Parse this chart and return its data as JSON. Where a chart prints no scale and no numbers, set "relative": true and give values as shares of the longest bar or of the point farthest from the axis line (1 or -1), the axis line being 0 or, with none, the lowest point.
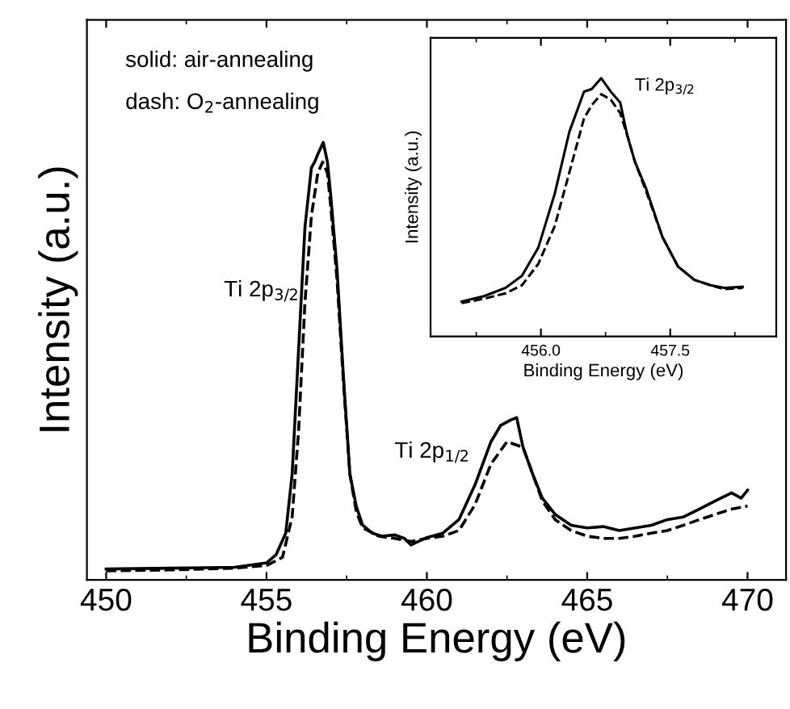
{
  "chart_data": [
    {
      "type": "line",
      "relative": true,
      "xlabel": "Binding Energy (eV)",
      "ylabel": "Intensity (a.u.)",
      "xlim": [
        449.4,
        471.2
      ],
      "xticks": [
        450,
        455,
        460,
        465,
        470
      ],
      "grid": false,
      "legend": false,
      "marker": "none",
      "annotations": [
        "solid: air-annealing",
        "dash: O$_{2}$-annealing",
        "Ti 2p$_{3/2}$",
        "Ti 2p$_{1/2}$"
      ],
      "series": [
        {
          "color": "#000000",
          "line_style": "solid",
          "x": [
            450,
            452,
            454,
            455,
            455.3,
            455.6,
            455.8,
            456.0,
            456.2,
            456.4,
            456.5,
            456.6,
            456.77,
            456.9,
            457.0,
            457.2,
            457.4,
            457.6,
            457.8,
            458.0,
            458.3,
            458.6,
            459.0,
            459.3,
            459.5,
            460.0,
            460.5,
            461.0,
            461.5,
            462.0,
            462.3,
            462.6,
            462.8,
            463.0,
            463.3,
            463.6,
            464.0,
            464.5,
            465.0,
            465.5,
            466.0,
            466.5,
            467.0,
            467.5,
            468.0,
            468.5,
            469.0,
            469.5,
            469.8,
            470.0
          ],
          "values": [
            0.025,
            0.027,
            0.029,
            0.039,
            0.058,
            0.107,
            0.242,
            0.525,
            0.807,
            0.942,
            0.955,
            0.973,
            1.0,
            0.955,
            0.881,
            0.709,
            0.463,
            0.242,
            0.168,
            0.125,
            0.107,
            0.1,
            0.103,
            0.095,
            0.08,
            0.097,
            0.107,
            0.138,
            0.217,
            0.316,
            0.353,
            0.365,
            0.371,
            0.303,
            0.242,
            0.187,
            0.15,
            0.125,
            0.119,
            0.122,
            0.113,
            0.119,
            0.125,
            0.138,
            0.144,
            0.162,
            0.181,
            0.199,
            0.187,
            0.205
          ]
        },
        {
          "color": "#000000",
          "line_style": "dashed",
          "x": [
            450,
            452,
            454,
            455,
            455.5,
            455.8,
            456.0,
            456.2,
            456.4,
            456.6,
            456.75,
            456.9,
            457.0,
            457.2,
            457.4,
            457.6,
            457.8,
            458.0,
            458.5,
            459.0,
            459.5,
            460.0,
            460.5,
            461.0,
            461.5,
            462.0,
            462.5,
            463.0,
            463.3,
            463.6,
            464.0,
            464.5,
            465.0,
            465.5,
            466.0,
            466.5,
            467.0,
            467.5,
            468.0,
            468.5,
            469.0,
            469.5,
            470.0
          ],
          "values": [
            0.021,
            0.023,
            0.027,
            0.033,
            0.052,
            0.144,
            0.34,
            0.635,
            0.832,
            0.93,
            0.955,
            0.93,
            0.856,
            0.685,
            0.451,
            0.242,
            0.156,
            0.119,
            0.1,
            0.095,
            0.088,
            0.095,
            0.1,
            0.113,
            0.172,
            0.265,
            0.316,
            0.303,
            0.242,
            0.181,
            0.138,
            0.113,
            0.1,
            0.095,
            0.095,
            0.1,
            0.107,
            0.113,
            0.125,
            0.138,
            0.15,
            0.162,
            0.169
          ]
        }
      ]
    },
    {
      "type": "line",
      "relative": true,
      "xlabel": "Binding Energy (eV)",
      "ylabel": "Intensity (a.u.)",
      "xlim": [
        454.72,
        458.73
      ],
      "xticks": [
        {
          "value": 456.0,
          "label": "456.0"
        },
        {
          "value": 457.5,
          "label": "457.5"
        }
      ],
      "grid": false,
      "legend": false,
      "marker": "none",
      "annotations": [
        "Ti 2p$_{3/2}$"
      ],
      "series": [
        {
          "color": "#000000",
          "line_style": "solid",
          "x": [
            455.08,
            455.34,
            455.59,
            455.78,
            455.97,
            456.16,
            456.33,
            456.5,
            456.59,
            456.7,
            456.81,
            456.92,
            457.0,
            457.09,
            457.22,
            457.41,
            457.59,
            457.78,
            457.97,
            458.13,
            458.34
          ],
          "values": [
            0.135,
            0.156,
            0.188,
            0.235,
            0.344,
            0.552,
            0.792,
            0.948,
            0.958,
            1.0,
            0.948,
            0.906,
            0.781,
            0.677,
            0.573,
            0.385,
            0.271,
            0.219,
            0.198,
            0.188,
            0.192
          ]
        },
        {
          "color": "#000000",
          "line_style": "dashed",
          "x": [
            455.08,
            455.34,
            455.59,
            455.78,
            455.97,
            456.16,
            456.33,
            456.5,
            456.59,
            456.7,
            456.81,
            456.92,
            457.0,
            457.09,
            457.22,
            457.41,
            457.59,
            457.78,
            457.97,
            458.13,
            458.34
          ],
          "values": [
            0.129,
            0.146,
            0.167,
            0.198,
            0.281,
            0.427,
            0.635,
            0.844,
            0.896,
            0.938,
            0.917,
            0.865,
            0.781,
            0.677,
            0.563,
            0.385,
            0.271,
            0.219,
            0.198,
            0.183,
            0.188
          ]
        }
      ]
    }
  ]
}
